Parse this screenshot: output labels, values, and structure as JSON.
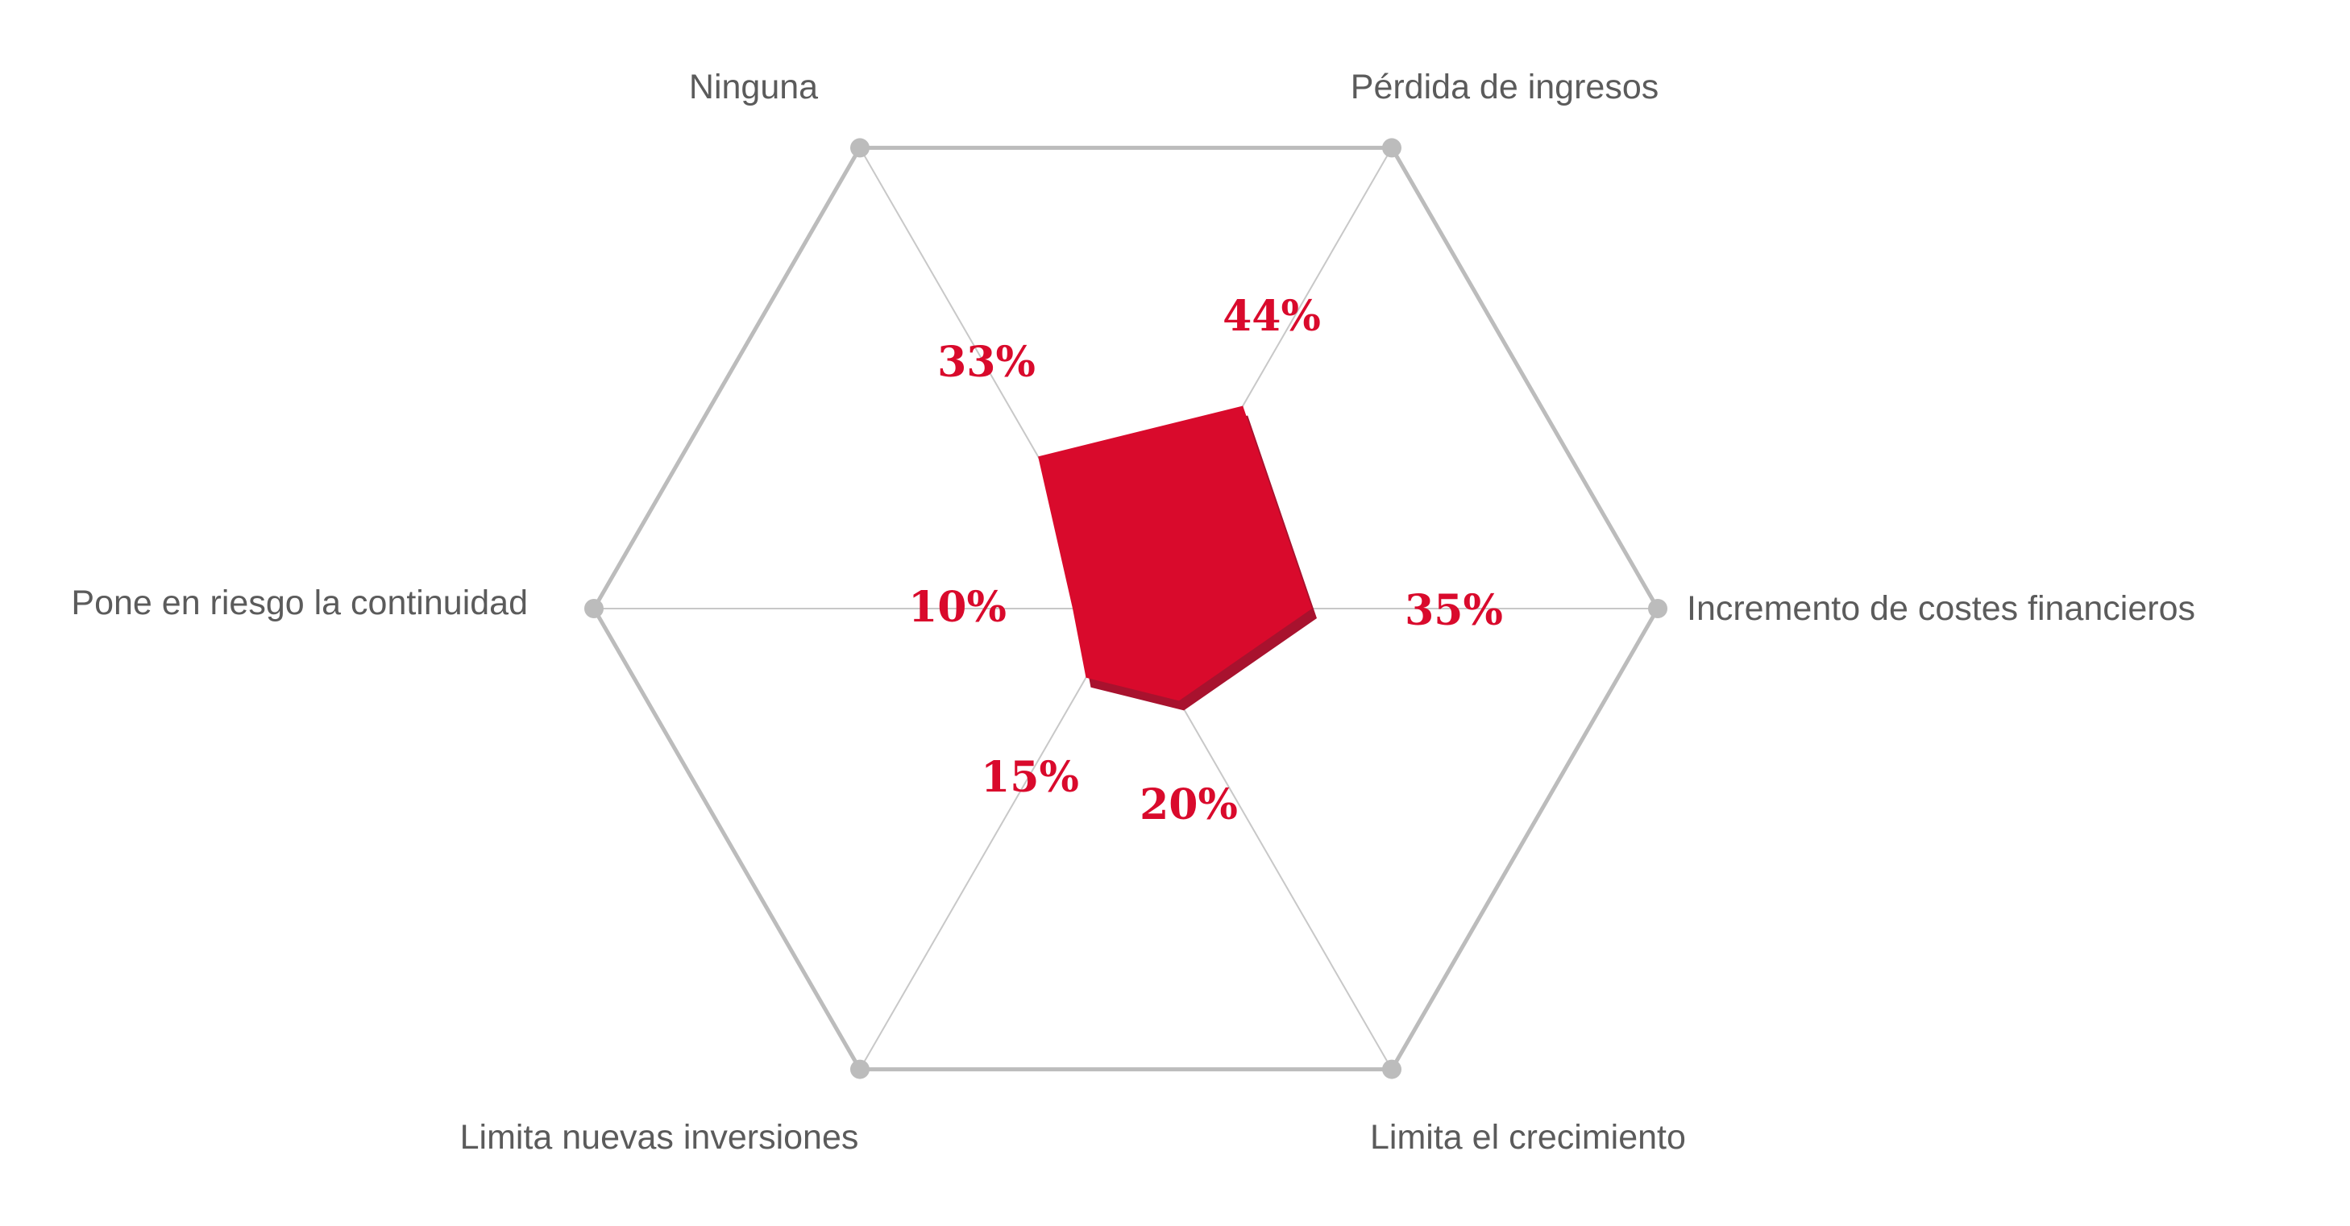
{
  "chart_data": {
    "type": "radar",
    "title": "",
    "categories": [
      "Ninguna",
      "Pérdida de ingresos",
      "Incremento de costes financieros",
      "Limita el crecimiento",
      "Limita nuevas inversiones",
      "Pone en riesgo la continuidad"
    ],
    "series": [
      {
        "values": [
          33,
          44,
          35,
          20,
          15,
          10
        ],
        "value_labels": [
          "33%",
          "44%",
          "35%",
          "20%",
          "15%",
          "10%"
        ],
        "color": "#d90a2c"
      }
    ],
    "range": [
      0,
      100
    ],
    "grid": "outer hexagon with spokes",
    "colors": {
      "fill": "#d90a2c",
      "shadow": "#a8122e",
      "grid": "#bcbcbc",
      "spoke": "#c8c8c8",
      "label": "#5b5b5b"
    }
  }
}
